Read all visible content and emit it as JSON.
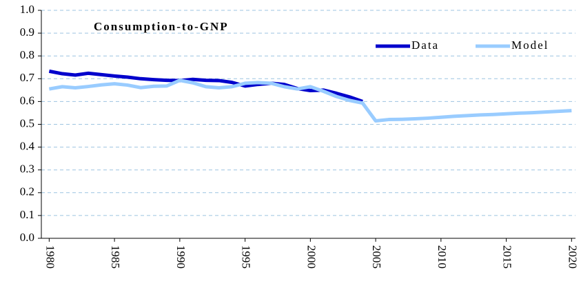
{
  "chart_data": {
    "type": "line",
    "title": "Consumption-to-GNP",
    "x": [
      1980,
      1981,
      1982,
      1983,
      1984,
      1985,
      1986,
      1987,
      1988,
      1989,
      1990,
      1991,
      1992,
      1993,
      1994,
      1995,
      1996,
      1997,
      1998,
      1999,
      2000,
      2001,
      2002,
      2003,
      2004,
      2005,
      2006,
      2007,
      2008,
      2009,
      2010,
      2011,
      2012,
      2013,
      2014,
      2015,
      2016,
      2017,
      2018,
      2019,
      2020
    ],
    "series": [
      {
        "name": "Data",
        "color": "#0000cc",
        "values": [
          0.733,
          0.722,
          0.716,
          0.724,
          0.718,
          0.712,
          0.707,
          0.7,
          0.696,
          0.693,
          0.692,
          0.697,
          0.693,
          0.692,
          0.684,
          0.668,
          0.675,
          0.68,
          0.675,
          0.657,
          0.648,
          0.65,
          0.636,
          0.62,
          0.6,
          null,
          null,
          null,
          null,
          null,
          null,
          null,
          null,
          null,
          null,
          null,
          null,
          null,
          null,
          null,
          null
        ]
      },
      {
        "name": "Model",
        "color": "#99ccff",
        "values": [
          0.655,
          0.665,
          0.66,
          0.666,
          0.673,
          0.678,
          0.672,
          0.661,
          0.667,
          0.668,
          0.693,
          0.682,
          0.665,
          0.66,
          0.665,
          0.68,
          0.683,
          0.68,
          0.665,
          0.655,
          0.665,
          0.645,
          0.622,
          0.605,
          0.593,
          0.515,
          0.521,
          0.522,
          0.524,
          0.527,
          0.531,
          0.535,
          0.538,
          0.541,
          0.543,
          0.546,
          0.549,
          0.551,
          0.554,
          0.557,
          0.56
        ]
      }
    ],
    "xlim": [
      1979.4,
      2020.3
    ],
    "xticks": [
      1980,
      1985,
      1990,
      1995,
      2000,
      2005,
      2010,
      2015,
      2020
    ],
    "ylim": [
      0,
      1
    ],
    "yticks": [
      {
        "value": 0,
        "label": "0.0"
      },
      0.1,
      0.2,
      0.3,
      0.4,
      0.5,
      0.6,
      0.7,
      0.8,
      0.9,
      {
        "value": 1,
        "label": "1.0"
      }
    ],
    "grid": true,
    "legend": "upper right"
  }
}
